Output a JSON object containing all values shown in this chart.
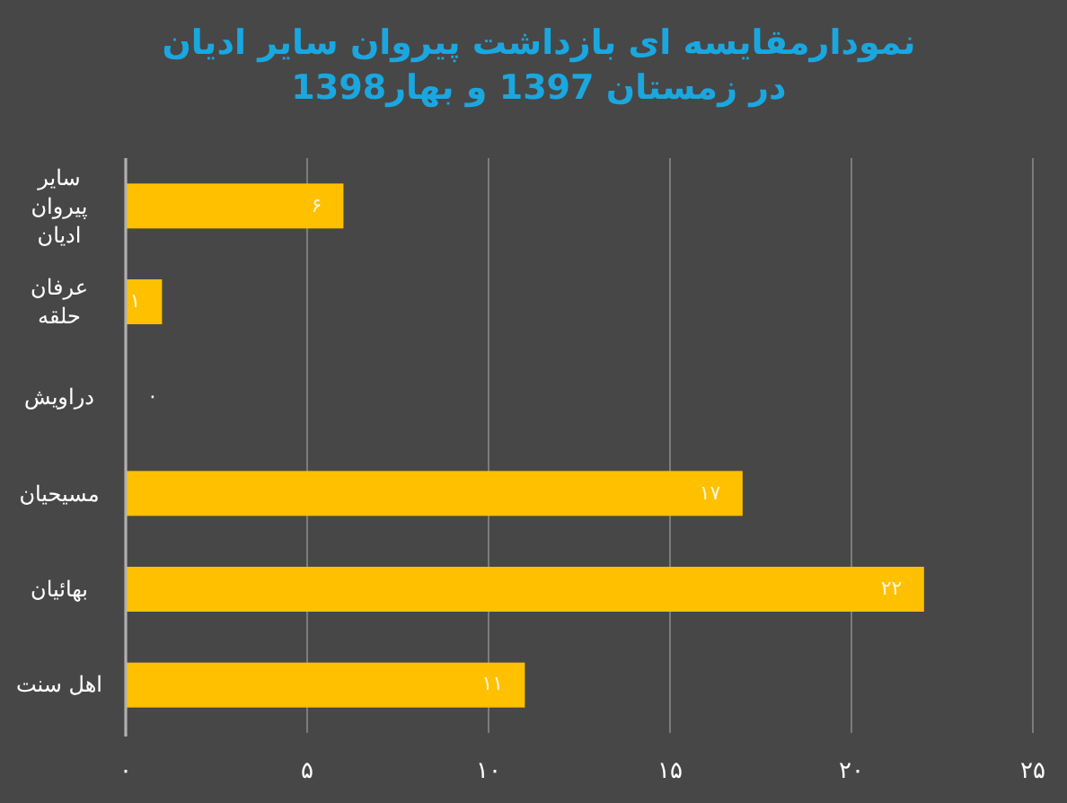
{
  "chart_data": {
    "type": "bar",
    "orientation": "horizontal",
    "title": "نمودارمقایسه ای بازداشت پیروان سایر ادیان در زمستان 1397 و بهار1398",
    "categories": [
      "سایر پیروان ادیان",
      "عرفان حلقه",
      "دراویش",
      "مسیحیان",
      "بهائیان",
      "اهل سنت"
    ],
    "values": [
      6,
      1,
      0,
      17,
      22,
      11
    ],
    "value_labels": [
      "۶",
      "۱",
      "۰",
      "۱۷",
      "۲۲",
      "۱۱"
    ],
    "color": "#ffc000",
    "xlim": [
      0,
      25
    ],
    "xticks": [
      {
        "value": 0,
        "label": "۰"
      },
      {
        "value": 5,
        "label": "۵"
      },
      {
        "value": 10,
        "label": "۱۰"
      },
      {
        "value": 15,
        "label": "۱۵"
      },
      {
        "value": 20,
        "label": "۲۰"
      },
      {
        "value": 25,
        "label": "۲۵"
      }
    ],
    "grid": "x"
  }
}
